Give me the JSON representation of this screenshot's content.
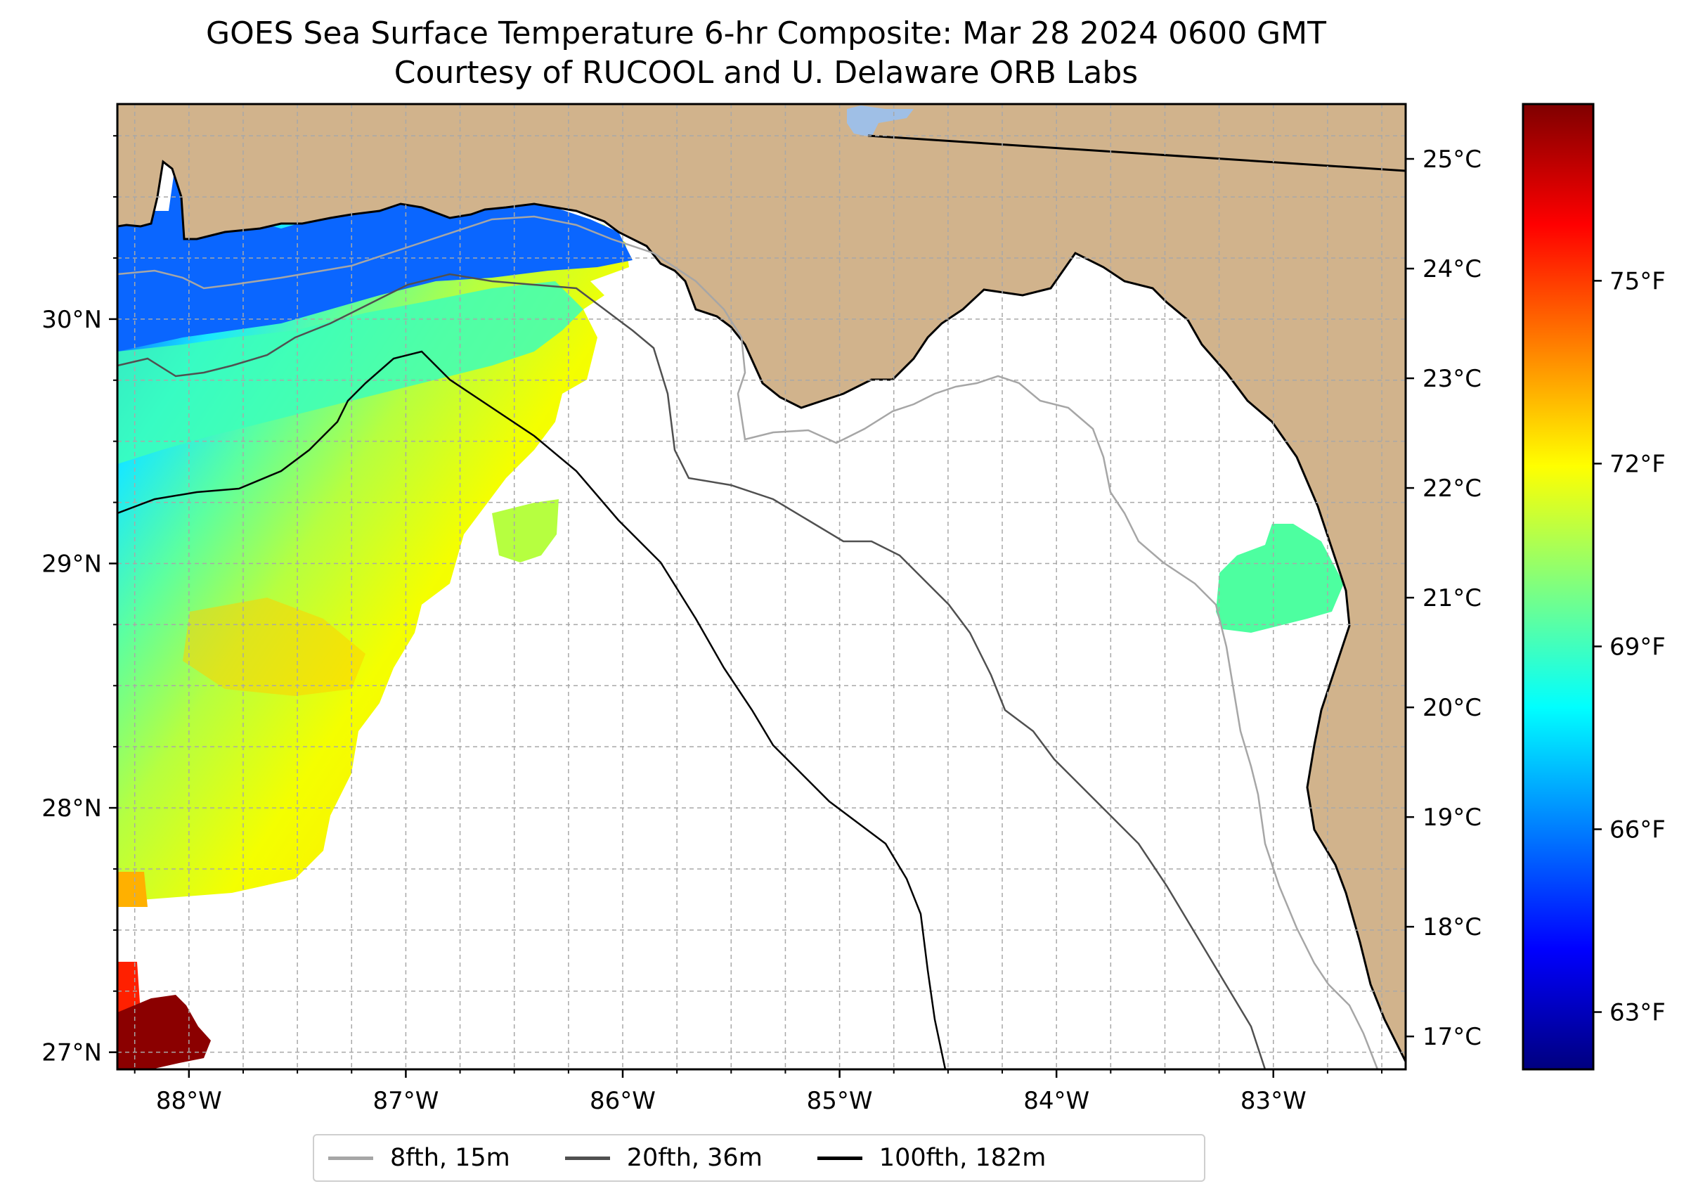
{
  "title": "GOES Sea Surface Temperature 6-hr Composite: Mar 28 2024 0600 GMT",
  "subtitle": "Courtesy of RUCOOL and U. Delaware ORB Labs",
  "map": {
    "lon_range": [
      -88.33,
      -82.39
    ],
    "lat_range": [
      26.93,
      30.88
    ],
    "land_color": "#d1b38c",
    "lake_color": "#9fbfe6",
    "gridlines": "dashed"
  },
  "axes": {
    "lon_ticks": [
      {
        "value": -88,
        "label": "88°W"
      },
      {
        "value": -87,
        "label": "87°W"
      },
      {
        "value": -86,
        "label": "86°W"
      },
      {
        "value": -85,
        "label": "85°W"
      },
      {
        "value": -84,
        "label": "84°W"
      },
      {
        "value": -83,
        "label": "83°W"
      }
    ],
    "lat_ticks": [
      {
        "value": 30,
        "label": "30°N"
      },
      {
        "value": 29,
        "label": "29°N"
      },
      {
        "value": 28,
        "label": "28°N"
      },
      {
        "value": 27,
        "label": "27°N"
      }
    ]
  },
  "sst_right_axis": {
    "ticks": [
      {
        "value": 25,
        "label": "25°C"
      },
      {
        "value": 24,
        "label": "24°C"
      },
      {
        "value": 23,
        "label": "23°C"
      },
      {
        "value": 22,
        "label": "22°C"
      },
      {
        "value": 21,
        "label": "21°C"
      },
      {
        "value": 20,
        "label": "20°C"
      },
      {
        "value": 19,
        "label": "19°C"
      },
      {
        "value": 18,
        "label": "18°C"
      },
      {
        "value": 17,
        "label": "17°C"
      }
    ]
  },
  "colorbar": {
    "colormap": "jet",
    "range_celsius": [
      16.7,
      25.5
    ],
    "stops": [
      "#00007f",
      "#0000ff",
      "#007fff",
      "#00ffff",
      "#7fff7f",
      "#ffff00",
      "#ff7f00",
      "#ff0000",
      "#7f0000"
    ],
    "ticks_fahrenheit": [
      {
        "value": 75,
        "label": "75°F"
      },
      {
        "value": 72,
        "label": "72°F"
      },
      {
        "value": 69,
        "label": "69°F"
      },
      {
        "value": 66,
        "label": "66°F"
      },
      {
        "value": 63,
        "label": "63°F"
      }
    ]
  },
  "legend": {
    "placement": "below",
    "items": [
      {
        "label": "8fth, 15m",
        "color": "#a6a6a6"
      },
      {
        "label": "20fth, 36m",
        "color": "#505050"
      },
      {
        "label": "100fth, 182m",
        "color": "#000000"
      }
    ]
  }
}
